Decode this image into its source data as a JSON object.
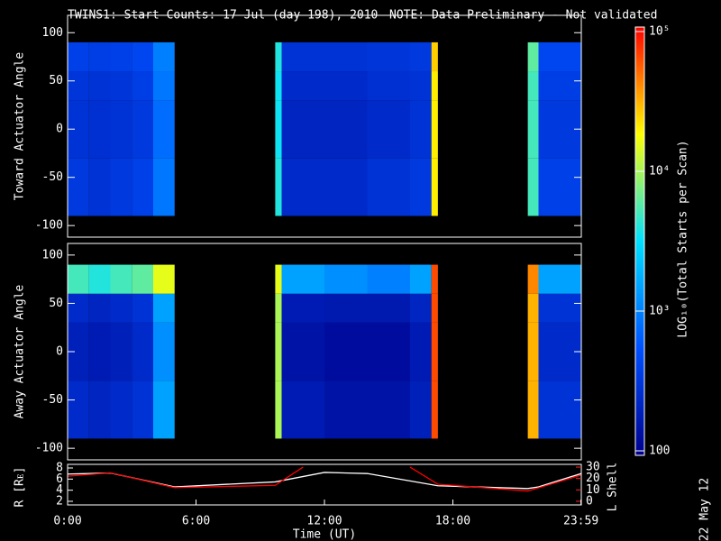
{
  "chart_data": [
    {
      "type": "heatmap",
      "title": "TWINS1: Start Counts: 17 Jul (day 198), 2010",
      "subtitle": "NOTE: Data Preliminary - Not validated",
      "ylabel": "Toward Actuator Angle",
      "xlim": [
        0,
        24
      ],
      "ylim": [
        -112,
        118
      ],
      "yticks": [
        -100,
        -50,
        0,
        50,
        100
      ],
      "xbins": [
        0,
        1,
        2,
        3,
        4,
        5,
        9.7,
        10,
        12,
        14,
        16,
        17,
        17.3,
        21.5,
        22,
        24
      ],
      "ybins": [
        -90,
        -30,
        30,
        60,
        90
      ],
      "values": [
        [
          350,
          300,
          350,
          400,
          900,
          null,
          4000,
          250,
          250,
          300,
          350,
          20000,
          null,
          5000,
          400
        ],
        [
          300,
          280,
          300,
          350,
          800,
          null,
          3500,
          220,
          220,
          250,
          300,
          20000,
          null,
          5000,
          350
        ],
        [
          320,
          300,
          320,
          380,
          900,
          null,
          3500,
          250,
          250,
          280,
          300,
          20000,
          null,
          5000,
          380
        ],
        [
          400,
          380,
          400,
          450,
          1000,
          null,
          4000,
          300,
          300,
          320,
          350,
          25000,
          null,
          6000,
          450
        ]
      ]
    },
    {
      "type": "heatmap",
      "ylabel": "Away Actuator Angle",
      "xlim": [
        0,
        24
      ],
      "ylim": [
        -112,
        112
      ],
      "yticks": [
        -100,
        -50,
        0,
        50,
        100
      ],
      "xbins": [
        0,
        1,
        2,
        3,
        4,
        5,
        9.7,
        10,
        12,
        14,
        16,
        17,
        17.3,
        21.5,
        22,
        24
      ],
      "ybins": [
        -90,
        -30,
        30,
        60,
        90
      ],
      "values": [
        [
          250,
          220,
          250,
          300,
          1500,
          null,
          10000,
          180,
          150,
          150,
          200,
          60000,
          null,
          30000,
          300
        ],
        [
          200,
          180,
          200,
          250,
          1200,
          null,
          10000,
          150,
          130,
          130,
          180,
          60000,
          null,
          30000,
          250
        ],
        [
          250,
          220,
          250,
          300,
          1500,
          null,
          10000,
          180,
          170,
          170,
          220,
          60000,
          null,
          30000,
          300
        ],
        [
          5000,
          4000,
          5000,
          6000,
          15000,
          null,
          15000,
          1500,
          1200,
          1000,
          1500,
          60000,
          null,
          40000,
          1500
        ]
      ]
    },
    {
      "type": "colorbar",
      "label": "LOG₁₀(Total Starts per Scan)",
      "log": true,
      "zlim": [
        100,
        100000
      ],
      "zticks": [
        100,
        {
          "value": 1000,
          "label": "10³"
        },
        {
          "value": 10000,
          "label": "10⁴"
        },
        {
          "value": 100000,
          "label": "10⁵"
        }
      ],
      "colormap": [
        "#00008c",
        "#0050ff",
        "#00e0ff",
        "#ffff00",
        "#ff0000"
      ]
    },
    {
      "type": "line",
      "xlabel": "Time (UT)",
      "ylabel": "R [Rᴇ]",
      "y2label": "L Shell",
      "annotation": "22 May 12",
      "xlim": [
        0,
        24
      ],
      "xticks": [
        {
          "value": 0,
          "label": "0:00"
        },
        {
          "value": 6,
          "label": "6:00"
        },
        {
          "value": 12,
          "label": "12:00"
        },
        {
          "value": 18,
          "label": "18:00"
        },
        {
          "value": 23.983,
          "label": "23:59"
        }
      ],
      "ylim": [
        1.35,
        8.65
      ],
      "yticks": [
        2,
        4,
        6,
        8
      ],
      "y2lim": [
        -3.2,
        32.4
      ],
      "y2ticks": [
        0,
        10,
        20,
        30
      ],
      "series": [
        {
          "color": "#ffffff",
          "x": [
            0,
            2,
            5,
            9.7,
            12,
            14,
            17.3,
            21.5,
            22,
            24
          ],
          "values": [
            6.9,
            7.1,
            4.6,
            5.5,
            7.2,
            7.0,
            4.8,
            4.3,
            4.6,
            7.0
          ]
        },
        {
          "color": "#ff0000",
          "axis": "y2",
          "x": [
            0,
            2,
            5,
            9.7,
            11,
            12.5,
            14.9,
            16,
            17.3,
            21.5,
            24
          ],
          "values": [
            22,
            25,
            12,
            14,
            30,
            null,
            null,
            30,
            15,
            9,
            23
          ]
        }
      ]
    }
  ]
}
